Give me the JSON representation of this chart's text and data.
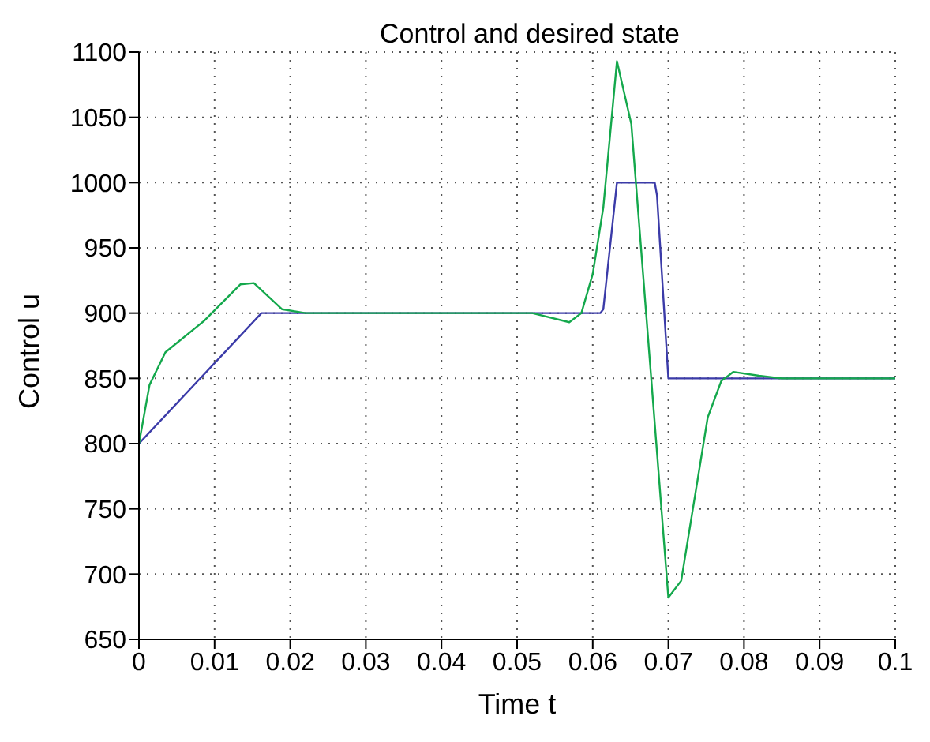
{
  "chart_data": {
    "type": "line",
    "title": "Control and desired state",
    "xlabel": "Time t",
    "ylabel": "Control u",
    "xlim": [
      0,
      0.1
    ],
    "xticks": [
      0,
      0.01,
      0.02,
      0.03,
      0.04,
      0.05,
      0.06,
      0.07,
      0.08,
      0.09,
      0.1
    ],
    "ylim": [
      650,
      1100
    ],
    "yticks": [
      650,
      700,
      750,
      800,
      850,
      900,
      950,
      1000,
      1050,
      1100
    ],
    "grid": true,
    "line_style": "solid",
    "marker": "none",
    "series": [
      {
        "color": "#3b3ba8",
        "x": [
          0,
          0.0162,
          0.061,
          0.0614,
          0.0632,
          0.0682,
          0.0685,
          0.07,
          0.1
        ],
        "values": [
          800,
          900,
          900,
          903,
          1000,
          1000,
          990,
          850,
          850
        ]
      },
      {
        "color": "#14a84c",
        "x": [
          0,
          0.0014,
          0.0035,
          0.0086,
          0.0134,
          0.0152,
          0.0189,
          0.022,
          0.052,
          0.0569,
          0.0585,
          0.06,
          0.0614,
          0.0632,
          0.0651,
          0.07,
          0.0717,
          0.0752,
          0.077,
          0.0786,
          0.082,
          0.085,
          0.1
        ],
        "values": [
          800,
          845,
          870,
          894,
          922,
          923,
          903,
          900,
          900,
          893,
          900,
          930,
          981,
          1093,
          1045,
          682,
          695,
          820,
          848,
          855,
          852,
          850,
          850
        ]
      }
    ]
  }
}
